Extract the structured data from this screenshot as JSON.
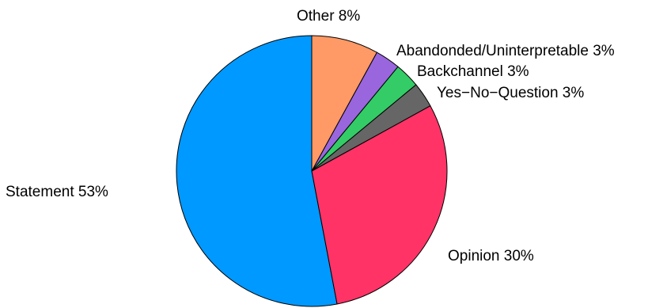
{
  "chart_data": {
    "type": "pie",
    "slices": [
      {
        "label": "Statement",
        "value": 53,
        "display": "Statement 53%",
        "color": "#0099FF"
      },
      {
        "label": "Opinion",
        "value": 30,
        "display": "Opinion 30%",
        "color": "#FF3366"
      },
      {
        "label": "Yes−No−Question",
        "value": 3,
        "display": "Yes−No−Question 3%",
        "color": "#666666"
      },
      {
        "label": "Backchannel",
        "value": 3,
        "display": "Backchannel 3%",
        "color": "#33CC66"
      },
      {
        "label": "Abandonded/Uninterpretable",
        "value": 3,
        "display": "Abandonded/Uninterpretable 3%",
        "color": "#9966DD"
      },
      {
        "label": "Other",
        "value": 8,
        "display": "Other 8%",
        "color": "#FF9966"
      }
    ],
    "start_angle": "12 o'clock",
    "direction": "counterclockwise",
    "legend": "none (labels beside slices)"
  }
}
